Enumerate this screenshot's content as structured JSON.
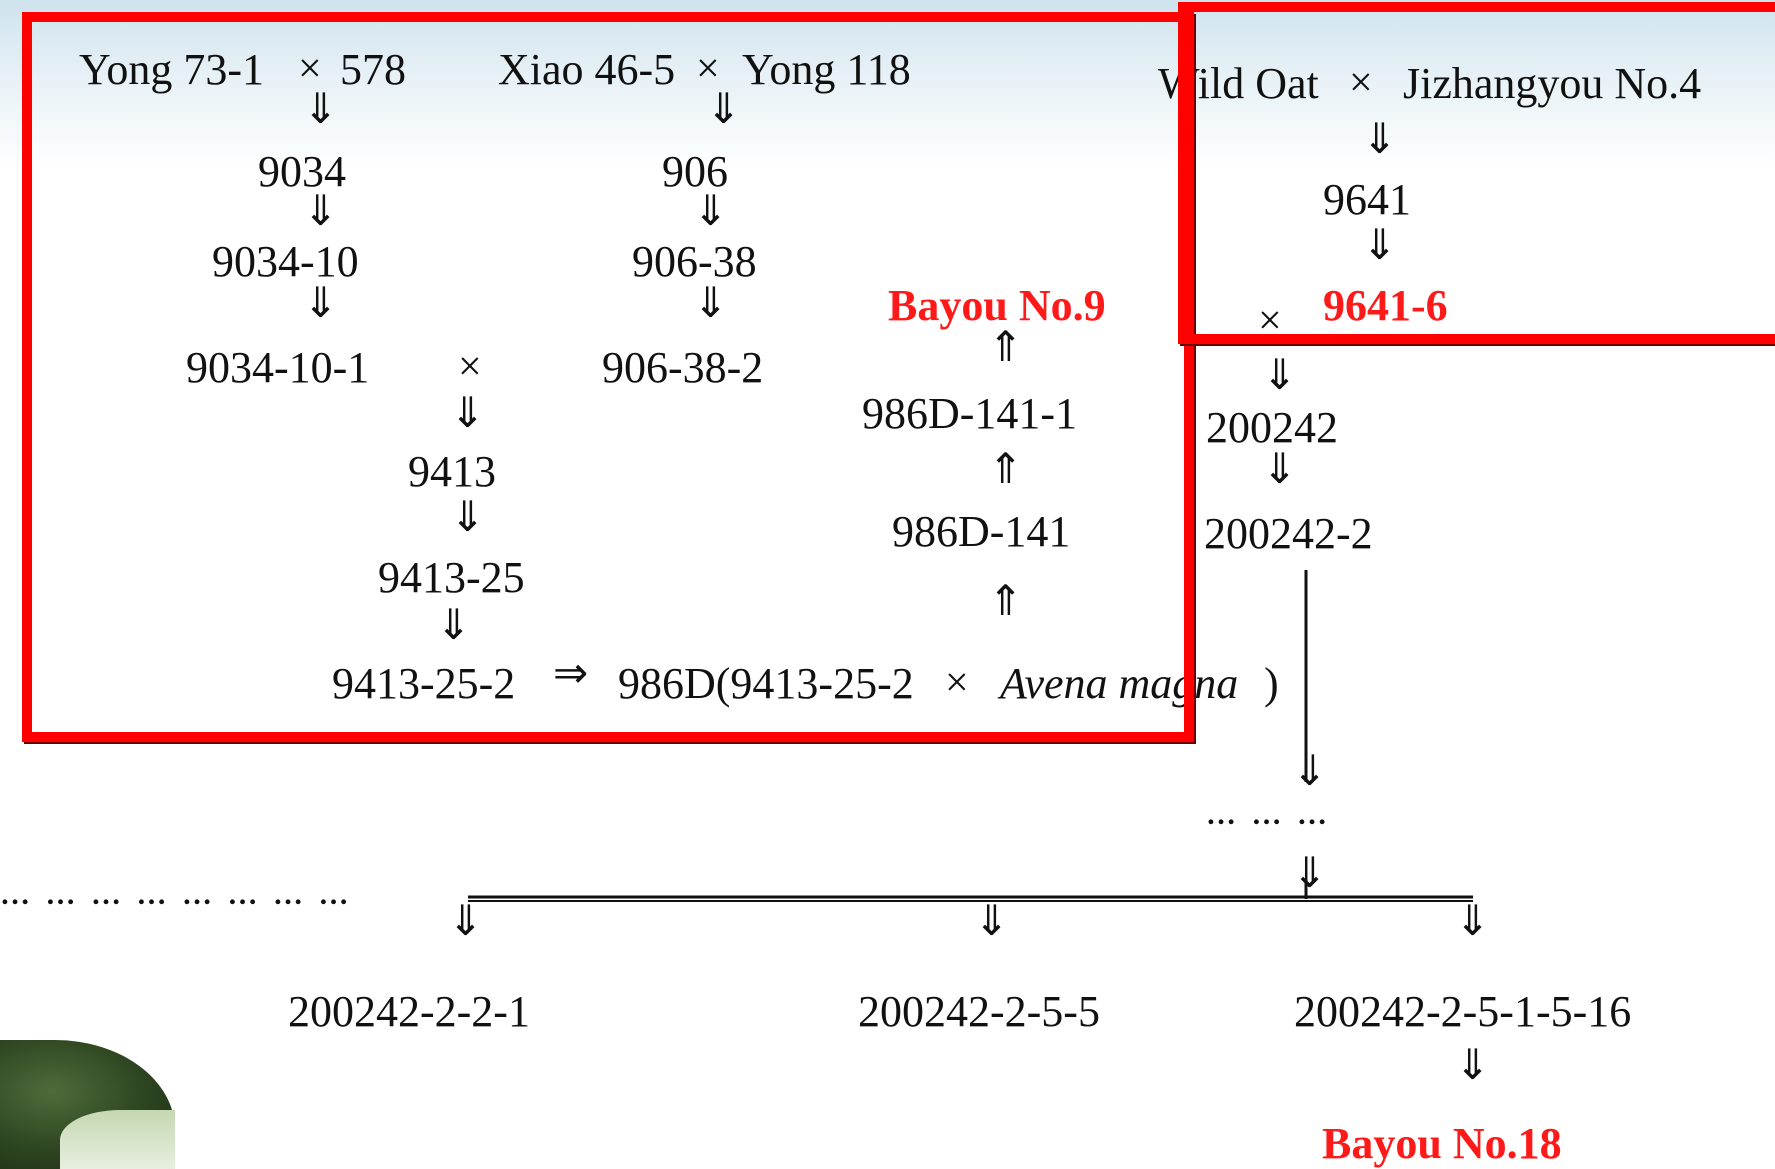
{
  "crosses": {
    "yong": {
      "left": "Yong 73-1",
      "right": "578"
    },
    "xiao": {
      "left": "Xiao 46-5",
      "right": "Yong 118"
    },
    "wild": {
      "left": "Wild Oat",
      "right": "Jizhangyou No.4"
    },
    "final": {
      "left": "986D(9413-25-2",
      "right": "Avena magna",
      "close": ")"
    }
  },
  "symbols": {
    "cross": "×",
    "down": "⇓",
    "up": "⇑",
    "right": "⇒"
  },
  "nodes": {
    "n9034": "9034",
    "n9034_10": "9034-10",
    "n9034_10_1": "9034-10-1",
    "n906": "906",
    "n906_38": "906-38",
    "n906_38_2": "906-38-2",
    "n9413": "9413",
    "n9413_25": "9413-25",
    "n9413_25_2": "9413-25-2",
    "n986d_141": "986D-141",
    "n986d_141_1": "986D-141-1",
    "n9641": "9641",
    "n9641_6": "9641-6",
    "n200242": "200242",
    "n200242_2": "200242-2",
    "n200242_2_2_1": "200242-2-2-1",
    "n200242_2_5_5": "200242-2-5-5",
    "n200242_2_5_1_5_16": "200242-2-5-1-5-16"
  },
  "cultivars": {
    "bayou9": "Bayou No.9",
    "bayou18": "Bayou No.18"
  },
  "ellipses": {
    "middle": "…  … …",
    "left": "…  … … … … … … …"
  },
  "colors": {
    "highlight": "#ff0000",
    "text": "#111111",
    "cultivar_text": "#ff1a1a"
  }
}
